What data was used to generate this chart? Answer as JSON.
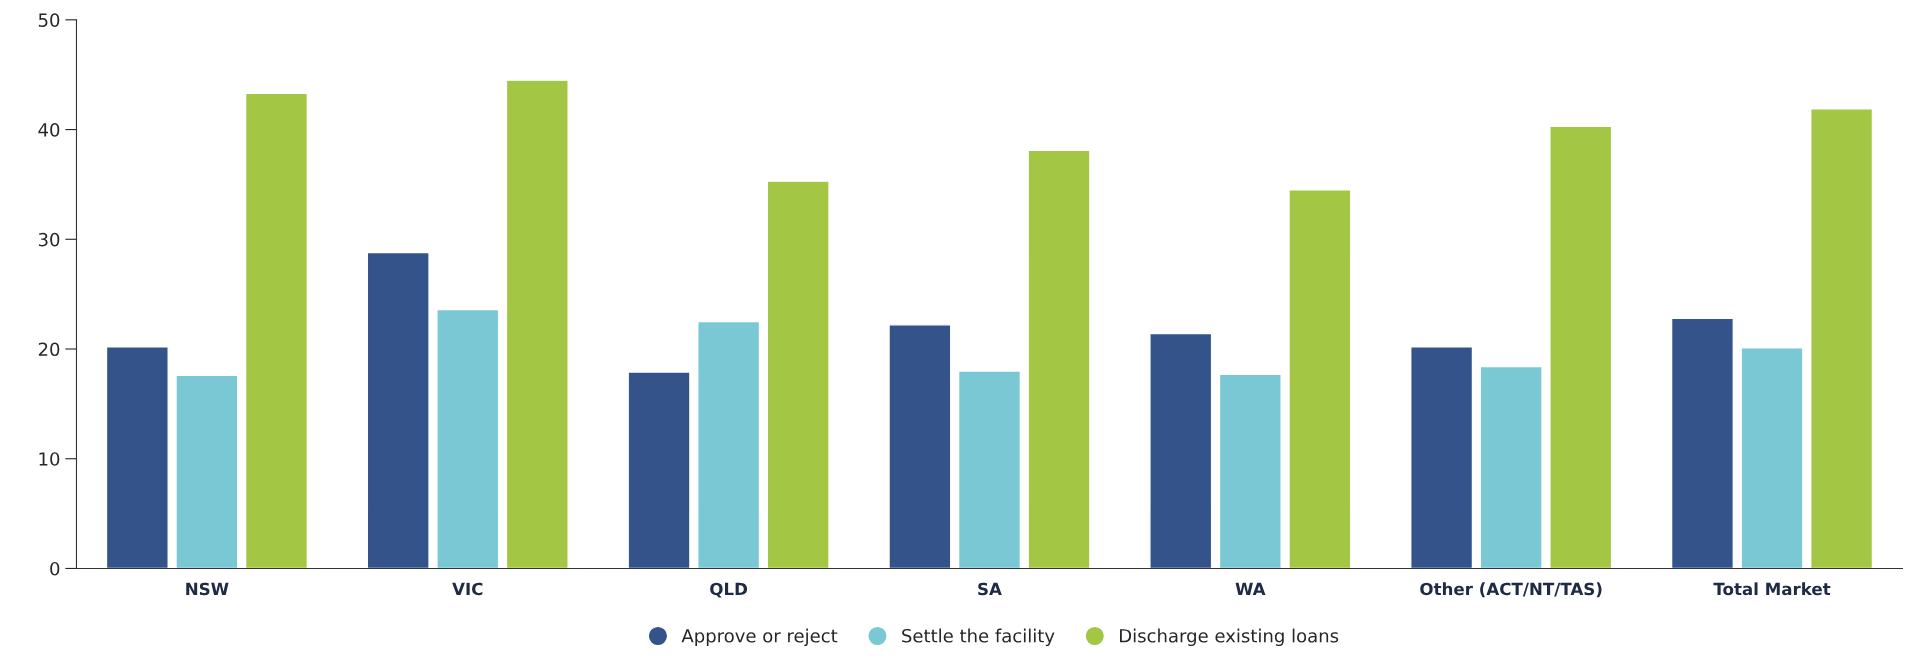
{
  "chart_data": {
    "type": "bar",
    "categories": [
      "NSW",
      "VIC",
      "QLD",
      "SA",
      "WA",
      "Other (ACT/NT/TAS)",
      "Total Market"
    ],
    "series": [
      {
        "name": "Approve or reject",
        "color": "#34538a",
        "values": [
          20.2,
          28.8,
          17.9,
          22.2,
          21.4,
          20.2,
          22.8
        ]
      },
      {
        "name": "Settle the facility",
        "color": "#7ac8d3",
        "values": [
          17.6,
          23.6,
          22.5,
          18.0,
          17.7,
          18.4,
          20.1
        ]
      },
      {
        "name": "Discharge existing loans",
        "color": "#a3c644",
        "values": [
          43.3,
          44.5,
          35.3,
          38.1,
          34.5,
          40.3,
          41.9
        ]
      }
    ],
    "ylim": [
      0,
      50
    ],
    "yticks": [
      0,
      10,
      20,
      30,
      40,
      50
    ],
    "grid": false,
    "legend": "bottom"
  }
}
